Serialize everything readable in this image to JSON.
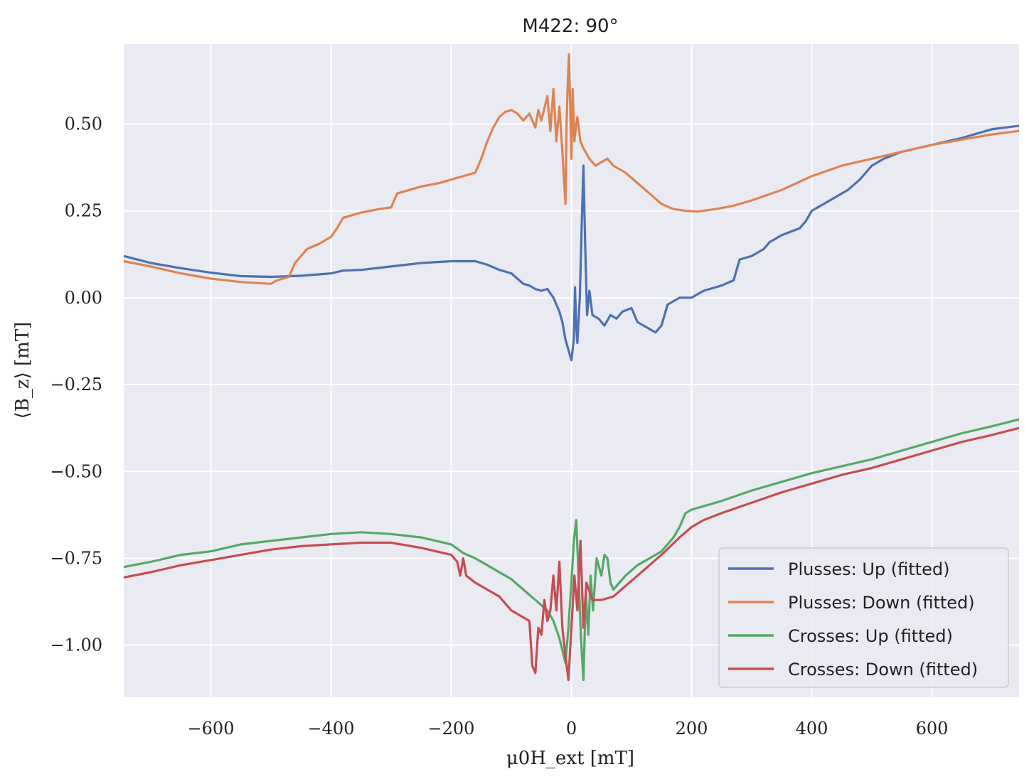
{
  "chart_data": {
    "type": "line",
    "title": "M422: 90°",
    "xlabel": "μ0H_ext [mT]",
    "ylabel": "⟨B_z⟩ [mT]",
    "xlim": [
      -745,
      745
    ],
    "ylim": [
      -1.15,
      0.73
    ],
    "x_ticks": [
      -600,
      -400,
      -200,
      0,
      200,
      400,
      600
    ],
    "x_tick_labels": [
      "−600",
      "−400",
      "−200",
      "0",
      "200",
      "400",
      "600"
    ],
    "y_ticks": [
      0.5,
      0.25,
      0.0,
      -0.25,
      -0.5,
      -0.75,
      -1.0
    ],
    "y_tick_labels": [
      "0.50",
      "0.25",
      "0.00",
      "−0.25",
      "−0.50",
      "−0.75",
      "−1.00"
    ],
    "grid": true,
    "legend_position": "bottom-right",
    "colors": {
      "background": "#eaeaf2",
      "grid": "#ffffff"
    },
    "series": [
      {
        "name": "Plusses: Up (fitted)",
        "color": "#4c72b0",
        "points": [
          [
            -745,
            0.12
          ],
          [
            -700,
            0.1
          ],
          [
            -650,
            0.085
          ],
          [
            -600,
            0.072
          ],
          [
            -550,
            0.062
          ],
          [
            -500,
            0.06
          ],
          [
            -450,
            0.063
          ],
          [
            -400,
            0.07
          ],
          [
            -380,
            0.078
          ],
          [
            -350,
            0.08
          ],
          [
            -300,
            0.09
          ],
          [
            -250,
            0.1
          ],
          [
            -200,
            0.105
          ],
          [
            -160,
            0.105
          ],
          [
            -140,
            0.095
          ],
          [
            -120,
            0.08
          ],
          [
            -100,
            0.07
          ],
          [
            -90,
            0.055
          ],
          [
            -80,
            0.04
          ],
          [
            -70,
            0.035
          ],
          [
            -60,
            0.025
          ],
          [
            -50,
            0.02
          ],
          [
            -40,
            0.025
          ],
          [
            -30,
            0.0
          ],
          [
            -20,
            -0.04
          ],
          [
            -15,
            -0.07
          ],
          [
            -10,
            -0.12
          ],
          [
            -5,
            -0.15
          ],
          [
            0,
            -0.18
          ],
          [
            4,
            -0.12
          ],
          [
            6,
            0.03
          ],
          [
            8,
            -0.08
          ],
          [
            10,
            -0.13
          ],
          [
            14,
            0.0
          ],
          [
            17,
            0.2
          ],
          [
            20,
            0.38
          ],
          [
            23,
            0.15
          ],
          [
            26,
            -0.05
          ],
          [
            30,
            0.02
          ],
          [
            35,
            -0.05
          ],
          [
            45,
            -0.06
          ],
          [
            55,
            -0.08
          ],
          [
            65,
            -0.05
          ],
          [
            75,
            -0.06
          ],
          [
            85,
            -0.04
          ],
          [
            100,
            -0.03
          ],
          [
            110,
            -0.07
          ],
          [
            120,
            -0.08
          ],
          [
            130,
            -0.09
          ],
          [
            140,
            -0.1
          ],
          [
            150,
            -0.08
          ],
          [
            160,
            -0.02
          ],
          [
            180,
            0.0
          ],
          [
            200,
            0.0
          ],
          [
            220,
            0.02
          ],
          [
            250,
            0.035
          ],
          [
            270,
            0.05
          ],
          [
            280,
            0.11
          ],
          [
            300,
            0.12
          ],
          [
            320,
            0.14
          ],
          [
            330,
            0.16
          ],
          [
            350,
            0.18
          ],
          [
            380,
            0.2
          ],
          [
            390,
            0.22
          ],
          [
            400,
            0.25
          ],
          [
            420,
            0.27
          ],
          [
            440,
            0.29
          ],
          [
            460,
            0.31
          ],
          [
            480,
            0.34
          ],
          [
            500,
            0.38
          ],
          [
            520,
            0.4
          ],
          [
            550,
            0.42
          ],
          [
            600,
            0.44
          ],
          [
            650,
            0.46
          ],
          [
            700,
            0.485
          ],
          [
            745,
            0.495
          ]
        ]
      },
      {
        "name": "Plusses: Down (fitted)",
        "color": "#dd8452",
        "points": [
          [
            -745,
            0.105
          ],
          [
            -700,
            0.09
          ],
          [
            -650,
            0.07
          ],
          [
            -600,
            0.055
          ],
          [
            -550,
            0.045
          ],
          [
            -500,
            0.04
          ],
          [
            -490,
            0.05
          ],
          [
            -470,
            0.06
          ],
          [
            -460,
            0.1
          ],
          [
            -440,
            0.14
          ],
          [
            -420,
            0.155
          ],
          [
            -400,
            0.175
          ],
          [
            -390,
            0.2
          ],
          [
            -380,
            0.23
          ],
          [
            -350,
            0.245
          ],
          [
            -320,
            0.255
          ],
          [
            -300,
            0.26
          ],
          [
            -290,
            0.3
          ],
          [
            -270,
            0.31
          ],
          [
            -250,
            0.32
          ],
          [
            -220,
            0.33
          ],
          [
            -200,
            0.34
          ],
          [
            -180,
            0.35
          ],
          [
            -160,
            0.36
          ],
          [
            -150,
            0.4
          ],
          [
            -140,
            0.45
          ],
          [
            -130,
            0.49
          ],
          [
            -120,
            0.52
          ],
          [
            -110,
            0.535
          ],
          [
            -100,
            0.54
          ],
          [
            -90,
            0.53
          ],
          [
            -80,
            0.51
          ],
          [
            -70,
            0.53
          ],
          [
            -60,
            0.49
          ],
          [
            -55,
            0.54
          ],
          [
            -50,
            0.51
          ],
          [
            -40,
            0.58
          ],
          [
            -35,
            0.48
          ],
          [
            -30,
            0.6
          ],
          [
            -25,
            0.45
          ],
          [
            -20,
            0.55
          ],
          [
            -15,
            0.42
          ],
          [
            -10,
            0.27
          ],
          [
            -8,
            0.5
          ],
          [
            -6,
            0.62
          ],
          [
            -4,
            0.7
          ],
          [
            -2,
            0.55
          ],
          [
            0,
            0.4
          ],
          [
            2,
            0.6
          ],
          [
            5,
            0.45
          ],
          [
            8,
            0.5
          ],
          [
            10,
            0.52
          ],
          [
            15,
            0.45
          ],
          [
            20,
            0.43
          ],
          [
            30,
            0.4
          ],
          [
            40,
            0.38
          ],
          [
            50,
            0.39
          ],
          [
            60,
            0.4
          ],
          [
            70,
            0.38
          ],
          [
            90,
            0.36
          ],
          [
            110,
            0.33
          ],
          [
            130,
            0.3
          ],
          [
            150,
            0.27
          ],
          [
            170,
            0.255
          ],
          [
            190,
            0.25
          ],
          [
            210,
            0.248
          ],
          [
            240,
            0.255
          ],
          [
            270,
            0.265
          ],
          [
            300,
            0.28
          ],
          [
            350,
            0.31
          ],
          [
            400,
            0.35
          ],
          [
            450,
            0.38
          ],
          [
            500,
            0.4
          ],
          [
            550,
            0.42
          ],
          [
            600,
            0.44
          ],
          [
            650,
            0.455
          ],
          [
            700,
            0.47
          ],
          [
            745,
            0.48
          ]
        ]
      },
      {
        "name": "Crosses: Up (fitted)",
        "color": "#55a868",
        "points": [
          [
            -745,
            -0.775
          ],
          [
            -700,
            -0.76
          ],
          [
            -650,
            -0.74
          ],
          [
            -600,
            -0.73
          ],
          [
            -550,
            -0.71
          ],
          [
            -500,
            -0.7
          ],
          [
            -450,
            -0.69
          ],
          [
            -400,
            -0.68
          ],
          [
            -350,
            -0.675
          ],
          [
            -300,
            -0.68
          ],
          [
            -250,
            -0.69
          ],
          [
            -200,
            -0.71
          ],
          [
            -180,
            -0.735
          ],
          [
            -160,
            -0.75
          ],
          [
            -140,
            -0.77
          ],
          [
            -120,
            -0.79
          ],
          [
            -100,
            -0.81
          ],
          [
            -80,
            -0.84
          ],
          [
            -60,
            -0.87
          ],
          [
            -40,
            -0.9
          ],
          [
            -30,
            -0.93
          ],
          [
            -20,
            -0.98
          ],
          [
            -10,
            -1.05
          ],
          [
            -5,
            -0.95
          ],
          [
            0,
            -0.82
          ],
          [
            4,
            -0.7
          ],
          [
            8,
            -0.64
          ],
          [
            12,
            -0.8
          ],
          [
            16,
            -0.98
          ],
          [
            20,
            -1.1
          ],
          [
            24,
            -0.85
          ],
          [
            28,
            -0.97
          ],
          [
            32,
            -0.8
          ],
          [
            36,
            -0.9
          ],
          [
            42,
            -0.75
          ],
          [
            50,
            -0.8
          ],
          [
            55,
            -0.74
          ],
          [
            60,
            -0.75
          ],
          [
            65,
            -0.82
          ],
          [
            70,
            -0.84
          ],
          [
            80,
            -0.82
          ],
          [
            90,
            -0.8
          ],
          [
            110,
            -0.77
          ],
          [
            130,
            -0.75
          ],
          [
            150,
            -0.73
          ],
          [
            170,
            -0.69
          ],
          [
            180,
            -0.66
          ],
          [
            190,
            -0.62
          ],
          [
            200,
            -0.61
          ],
          [
            220,
            -0.6
          ],
          [
            250,
            -0.585
          ],
          [
            300,
            -0.555
          ],
          [
            350,
            -0.53
          ],
          [
            400,
            -0.505
          ],
          [
            450,
            -0.485
          ],
          [
            500,
            -0.465
          ],
          [
            550,
            -0.44
          ],
          [
            600,
            -0.415
          ],
          [
            650,
            -0.39
          ],
          [
            700,
            -0.37
          ],
          [
            745,
            -0.35
          ]
        ]
      },
      {
        "name": "Crosses: Down (fitted)",
        "color": "#c44e52",
        "points": [
          [
            -745,
            -0.805
          ],
          [
            -700,
            -0.79
          ],
          [
            -650,
            -0.77
          ],
          [
            -600,
            -0.755
          ],
          [
            -550,
            -0.74
          ],
          [
            -500,
            -0.725
          ],
          [
            -450,
            -0.715
          ],
          [
            -400,
            -0.71
          ],
          [
            -350,
            -0.705
          ],
          [
            -300,
            -0.705
          ],
          [
            -250,
            -0.72
          ],
          [
            -200,
            -0.74
          ],
          [
            -190,
            -0.76
          ],
          [
            -185,
            -0.8
          ],
          [
            -180,
            -0.75
          ],
          [
            -175,
            -0.8
          ],
          [
            -160,
            -0.82
          ],
          [
            -140,
            -0.84
          ],
          [
            -120,
            -0.86
          ],
          [
            -100,
            -0.9
          ],
          [
            -80,
            -0.92
          ],
          [
            -70,
            -0.93
          ],
          [
            -65,
            -1.06
          ],
          [
            -60,
            -1.08
          ],
          [
            -55,
            -0.95
          ],
          [
            -50,
            -0.97
          ],
          [
            -45,
            -0.87
          ],
          [
            -40,
            -0.93
          ],
          [
            -35,
            -0.9
          ],
          [
            -30,
            -0.8
          ],
          [
            -25,
            -0.9
          ],
          [
            -20,
            -0.76
          ],
          [
            -15,
            -0.95
          ],
          [
            -10,
            -1.03
          ],
          [
            -5,
            -1.1
          ],
          [
            0,
            -0.95
          ],
          [
            5,
            -0.8
          ],
          [
            10,
            -0.9
          ],
          [
            15,
            -0.7
          ],
          [
            20,
            -0.95
          ],
          [
            25,
            -0.82
          ],
          [
            35,
            -0.87
          ],
          [
            50,
            -0.87
          ],
          [
            70,
            -0.86
          ],
          [
            90,
            -0.83
          ],
          [
            110,
            -0.8
          ],
          [
            130,
            -0.77
          ],
          [
            150,
            -0.74
          ],
          [
            180,
            -0.69
          ],
          [
            200,
            -0.66
          ],
          [
            220,
            -0.64
          ],
          [
            250,
            -0.62
          ],
          [
            300,
            -0.59
          ],
          [
            350,
            -0.56
          ],
          [
            400,
            -0.535
          ],
          [
            450,
            -0.51
          ],
          [
            500,
            -0.49
          ],
          [
            550,
            -0.465
          ],
          [
            600,
            -0.44
          ],
          [
            650,
            -0.415
          ],
          [
            700,
            -0.395
          ],
          [
            745,
            -0.375
          ]
        ]
      }
    ]
  }
}
